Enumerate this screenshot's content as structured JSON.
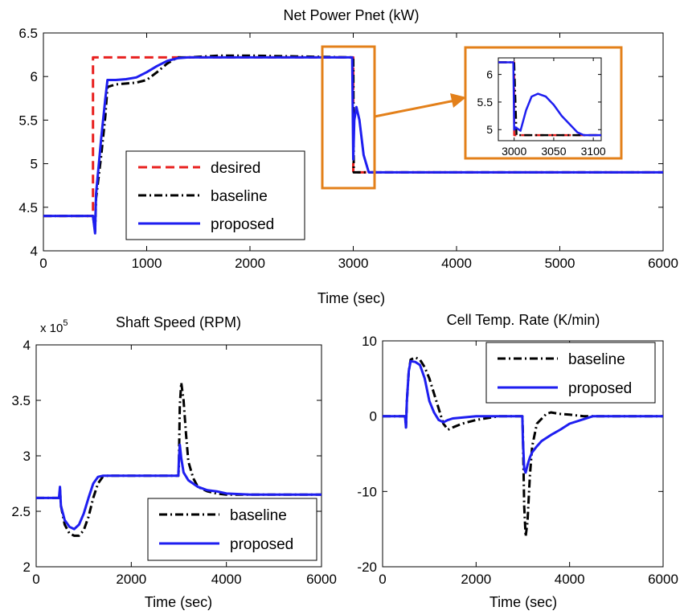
{
  "colors": {
    "desired": "#e8201f",
    "baseline": "#000000",
    "proposed": "#1e1ef0",
    "zoom": "#e3801a"
  },
  "chart_data": [
    {
      "type": "line",
      "title": "Net Power Pnet (kW)",
      "xlabel": "Time (sec)",
      "ylabel": "",
      "xlim": [
        0,
        6000
      ],
      "ylim": [
        4,
        6.5
      ],
      "xticks": [
        "0",
        "1000",
        "2000",
        "3000",
        "4000",
        "5000",
        "6000"
      ],
      "yticks": [
        "4",
        "4.5",
        "5",
        "5.5",
        "6",
        "6.5"
      ],
      "legend": {
        "position": "lower-left"
      },
      "series": [
        {
          "key": "desired",
          "name": "desired",
          "x": [
            0,
            480,
            480,
            3000,
            3000,
            6000
          ],
          "y": [
            4.4,
            4.4,
            6.22,
            6.22,
            4.9,
            4.9
          ]
        },
        {
          "key": "baseline",
          "name": "baseline",
          "x": [
            0,
            480,
            500,
            510,
            560,
            600,
            620,
            700,
            800,
            900,
            1000,
            1100,
            1200,
            1300,
            1400,
            1700,
            2000,
            2500,
            2990,
            3000,
            3005,
            3020,
            3040,
            6000
          ],
          "y": [
            4.4,
            4.4,
            4.22,
            4.6,
            5.1,
            5.55,
            5.88,
            5.91,
            5.92,
            5.93,
            5.96,
            6.05,
            6.15,
            6.22,
            6.22,
            6.24,
            6.24,
            6.23,
            6.22,
            6.22,
            4.9,
            4.9,
            4.9,
            4.9
          ]
        },
        {
          "key": "proposed",
          "name": "proposed",
          "x": [
            0,
            480,
            500,
            510,
            560,
            600,
            620,
            700,
            800,
            900,
            1000,
            1100,
            1200,
            1300,
            1400,
            2000,
            2990,
            3000,
            3010,
            3030,
            3060,
            3100,
            3150,
            6000
          ],
          "y": [
            4.4,
            4.4,
            4.2,
            4.65,
            5.3,
            5.75,
            5.96,
            5.96,
            5.97,
            5.99,
            6.05,
            6.12,
            6.18,
            6.21,
            6.22,
            6.22,
            6.22,
            5.05,
            5.5,
            5.65,
            5.5,
            5.1,
            4.9,
            4.9
          ]
        }
      ]
    },
    {
      "type": "line",
      "title": "",
      "xlabel": "",
      "ylabel": "",
      "xlim": [
        2980,
        3110
      ],
      "ylim": [
        4.8,
        6.3
      ],
      "xticks": [
        "3000",
        "3050",
        "3100"
      ],
      "yticks": [
        "5",
        "5.5",
        "6"
      ],
      "series": [
        {
          "key": "desired",
          "x": [
            2980,
            3000,
            3000,
            3110
          ],
          "y": [
            6.22,
            6.22,
            4.9,
            4.9
          ]
        },
        {
          "key": "baseline",
          "x": [
            2980,
            3000,
            3003,
            3110
          ],
          "y": [
            6.22,
            6.22,
            4.9,
            4.9
          ]
        },
        {
          "key": "proposed",
          "x": [
            2980,
            2999,
            3000,
            3002,
            3008,
            3015,
            3022,
            3030,
            3040,
            3050,
            3060,
            3070,
            3080,
            3088,
            3110
          ],
          "y": [
            6.22,
            6.22,
            5.0,
            5.04,
            4.98,
            5.35,
            5.6,
            5.65,
            5.6,
            5.45,
            5.25,
            5.1,
            4.95,
            4.9,
            4.9
          ]
        }
      ]
    },
    {
      "type": "line",
      "title": "Shaft Speed (RPM)",
      "xlabel": "Time (sec)",
      "ylabel": "",
      "multiplier": "x 10",
      "multiplier_exp": "5",
      "xlim": [
        0,
        6000
      ],
      "ylim": [
        2,
        4
      ],
      "xticks": [
        "0",
        "2000",
        "4000",
        "6000"
      ],
      "yticks": [
        "2",
        "2.5",
        "3",
        "3.5",
        "4"
      ],
      "legend": {
        "position": "lower-right"
      },
      "series": [
        {
          "key": "baseline",
          "name": "baseline",
          "x": [
            0,
            480,
            500,
            520,
            600,
            700,
            800,
            900,
            1000,
            1100,
            1200,
            1300,
            1400,
            1500,
            2000,
            2990,
            3000,
            3020,
            3050,
            3100,
            3150,
            3200,
            3300,
            3400,
            3600,
            3800,
            4000,
            4200,
            6000
          ],
          "y": [
            2.62,
            2.62,
            2.7,
            2.55,
            2.38,
            2.3,
            2.28,
            2.28,
            2.33,
            2.45,
            2.62,
            2.75,
            2.81,
            2.82,
            2.82,
            2.82,
            2.9,
            3.45,
            3.66,
            3.5,
            3.2,
            2.95,
            2.8,
            2.72,
            2.68,
            2.66,
            2.65,
            2.65,
            2.65
          ]
        },
        {
          "key": "proposed",
          "name": "proposed",
          "x": [
            0,
            480,
            500,
            520,
            600,
            700,
            800,
            900,
            1000,
            1100,
            1200,
            1300,
            1400,
            1500,
            2000,
            2990,
            3000,
            3020,
            3050,
            3100,
            3200,
            3400,
            3600,
            3800,
            4000,
            4500,
            6000
          ],
          "y": [
            2.62,
            2.62,
            2.72,
            2.55,
            2.42,
            2.36,
            2.34,
            2.38,
            2.48,
            2.62,
            2.75,
            2.81,
            2.82,
            2.82,
            2.82,
            2.82,
            2.95,
            3.1,
            2.98,
            2.85,
            2.78,
            2.72,
            2.69,
            2.68,
            2.66,
            2.65,
            2.65
          ]
        }
      ]
    },
    {
      "type": "line",
      "title": "Cell Temp. Rate (K/min)",
      "xlabel": "Time (sec)",
      "ylabel": "",
      "xlim": [
        0,
        6000
      ],
      "ylim": [
        -20,
        10
      ],
      "xticks": [
        "0",
        "2000",
        "4000",
        "6000"
      ],
      "yticks": [
        "-20",
        "-10",
        "0",
        "10"
      ],
      "legend": {
        "position": "top-right"
      },
      "series": [
        {
          "key": "baseline",
          "name": "baseline",
          "x": [
            0,
            480,
            500,
            520,
            560,
            600,
            700,
            800,
            900,
            1000,
            1100,
            1200,
            1300,
            1400,
            1500,
            1700,
            2000,
            2300,
            2500,
            2990,
            3000,
            3030,
            3060,
            3100,
            3150,
            3200,
            3300,
            3500,
            3600,
            3800,
            4000,
            4300,
            6000
          ],
          "y": [
            0,
            0,
            -1.5,
            2,
            6,
            7.5,
            7.8,
            7.5,
            6.5,
            5,
            3,
            1,
            -1,
            -1.8,
            -1.5,
            -1,
            -0.5,
            -0.2,
            0,
            0,
            -2,
            -12,
            -16,
            -14,
            -8,
            -4,
            -1,
            0.3,
            0.5,
            0.3,
            0.2,
            0,
            0
          ]
        },
        {
          "key": "proposed",
          "name": "proposed",
          "x": [
            0,
            480,
            500,
            520,
            560,
            600,
            700,
            800,
            900,
            1000,
            1100,
            1200,
            1300,
            1400,
            1500,
            2000,
            2990,
            3000,
            3030,
            3060,
            3100,
            3150,
            3200,
            3300,
            3400,
            3600,
            3800,
            4000,
            4300,
            4500,
            6000
          ],
          "y": [
            0,
            0,
            -1.5,
            2,
            6,
            7.3,
            7.2,
            6.8,
            5,
            2,
            0.5,
            -0.5,
            -0.8,
            -0.5,
            -0.3,
            0,
            0,
            -3,
            -7,
            -7.5,
            -6.5,
            -5.5,
            -4.8,
            -4,
            -3.3,
            -2.5,
            -1.8,
            -1,
            -0.4,
            0,
            0
          ]
        }
      ]
    }
  ]
}
